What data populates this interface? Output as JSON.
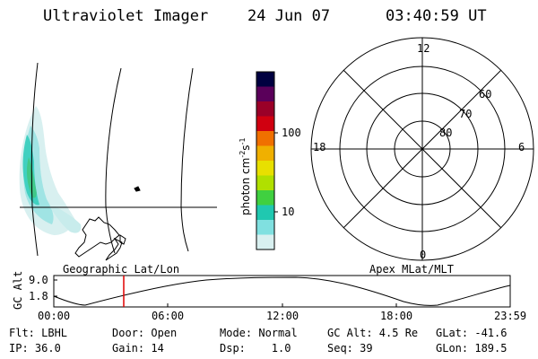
{
  "header": {
    "instrument": "Ultraviolet Imager",
    "date": "24 Jun 07",
    "time": "03:40:59 UT"
  },
  "geo_panel": {
    "caption": "Geographic Lat/Lon"
  },
  "colorbar": {
    "unit": "photon cm",
    "unit_exp1": "-2",
    "unit_s": "s",
    "unit_exp2": "-1",
    "ticks": [
      "100",
      "10"
    ],
    "colors": [
      "#000040",
      "#5a005a",
      "#9a0028",
      "#d00010",
      "#f07000",
      "#f0b000",
      "#e8e000",
      "#b0e000",
      "#40d040",
      "#20c8b0",
      "#80e0e0",
      "#d8f0f0"
    ]
  },
  "polar_panel": {
    "caption": "Apex MLat/MLT",
    "mlt_labels": [
      "12",
      "18",
      "6",
      "0"
    ],
    "lat_labels": [
      "60",
      "70",
      "80"
    ]
  },
  "altitude_plot": {
    "ylabel": "GC Alt",
    "yticks": [
      "9.0",
      "1.8"
    ],
    "xticks": [
      "00:00",
      "06:00",
      "12:00",
      "18:00",
      "23:59"
    ],
    "current_time_marker": "03:40"
  },
  "footer": {
    "filter": "Flt: LBHL",
    "ip": "IP: 36.0",
    "door": "Door: Open",
    "gain": "Gain: 14",
    "mode": "Mode: Normal",
    "dsp": "Dsp:    1.0",
    "gc_alt": "GC Alt: 4.5 Re",
    "seq": "Seq: 39",
    "glat": "GLat: -41.6",
    "glon": "GLon: 189.5"
  }
}
